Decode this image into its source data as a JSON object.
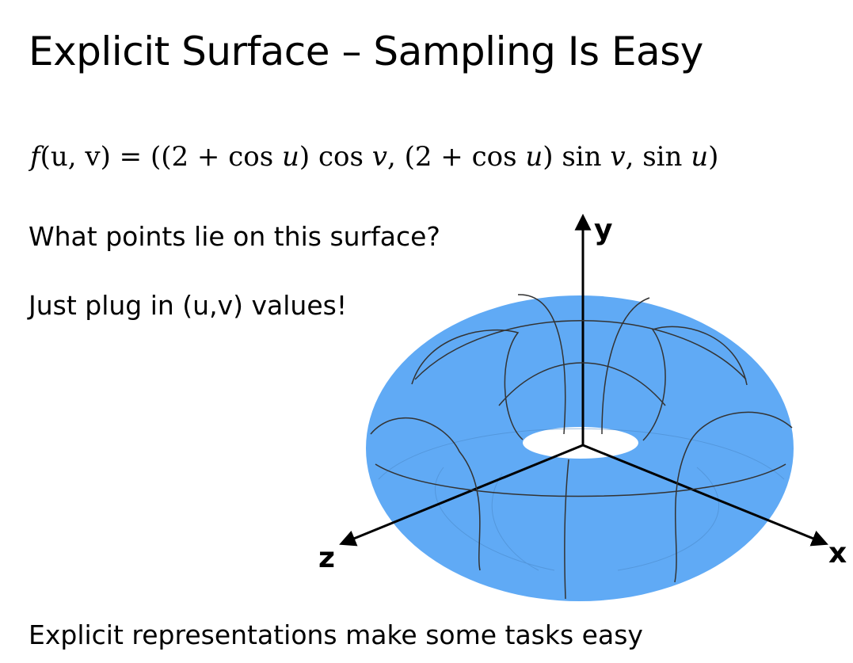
{
  "slide": {
    "title": "Explicit Surface – Sampling Is Easy",
    "formula": {
      "lhs": "f",
      "args": "(u, v)",
      "eq": " = ",
      "rhs_part1": "((2 + cos ",
      "u1": "u",
      "rhs_part2": ") cos ",
      "v1": "v",
      "rhs_part3": ", (2 + cos ",
      "u2": "u",
      "rhs_part4": ") sin ",
      "v2": "v",
      "rhs_part5": ", sin ",
      "u3": "u",
      "rhs_part6": ")"
    },
    "question": "What points lie on this surface?",
    "answer": "Just plug in (u,v) values!",
    "footer": "Explicit representations make some tasks easy"
  },
  "figure": {
    "axes": {
      "x": "x",
      "y": "y",
      "z": "z"
    },
    "torus_color": "#60aaf5",
    "grid_line_color": "#333333"
  }
}
